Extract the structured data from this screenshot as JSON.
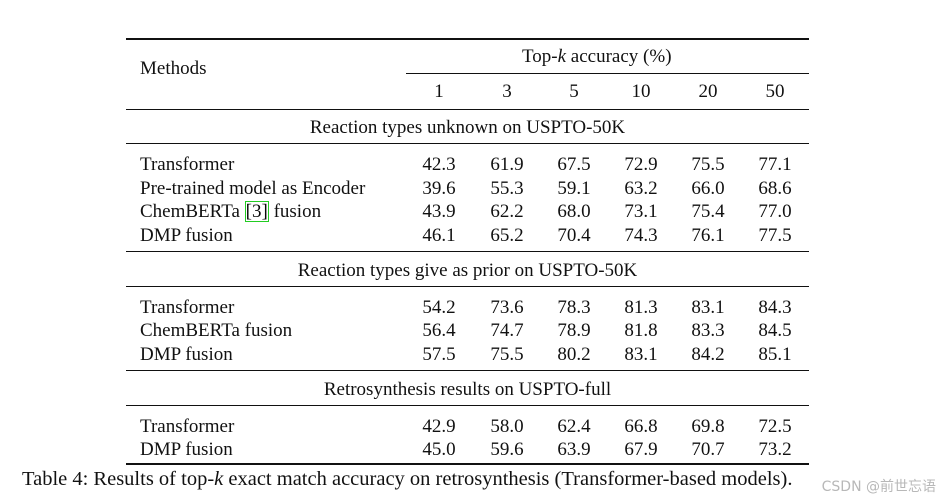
{
  "table": {
    "methods_header": "Methods",
    "topk_header_prefix": "Top-",
    "topk_header_k": "k",
    "topk_header_suffix": " accuracy (%)",
    "k_values": [
      "1",
      "3",
      "5",
      "10",
      "20",
      "50"
    ],
    "sections": [
      {
        "title": "Reaction types unknown on USPTO-50K",
        "rows": [
          {
            "method": "Transformer",
            "values": [
              "42.3",
              "61.9",
              "67.5",
              "72.9",
              "75.5",
              "77.1"
            ]
          },
          {
            "method": "Pre-trained model as Encoder",
            "values": [
              "39.6",
              "55.3",
              "59.1",
              "63.2",
              "66.0",
              "68.6"
            ]
          },
          {
            "method_prefix": "ChemBERTa ",
            "method_ref": "[3]",
            "method_suffix": " fusion",
            "values": [
              "43.9",
              "62.2",
              "68.0",
              "73.1",
              "75.4",
              "77.0"
            ]
          },
          {
            "method": "DMP fusion",
            "values": [
              "46.1",
              "65.2",
              "70.4",
              "74.3",
              "76.1",
              "77.5"
            ]
          }
        ]
      },
      {
        "title": "Reaction types give as prior on USPTO-50K",
        "rows": [
          {
            "method": "Transformer",
            "values": [
              "54.2",
              "73.6",
              "78.3",
              "81.3",
              "83.1",
              "84.3"
            ]
          },
          {
            "method": "ChemBERTa fusion",
            "values": [
              "56.4",
              "74.7",
              "78.9",
              "81.8",
              "83.3",
              "84.5"
            ]
          },
          {
            "method": "DMP fusion",
            "values": [
              "57.5",
              "75.5",
              "80.2",
              "83.1",
              "84.2",
              "85.1"
            ]
          }
        ]
      },
      {
        "title": "Retrosynthesis results on USPTO-full",
        "rows": [
          {
            "method": "Transformer",
            "values": [
              "42.9",
              "58.0",
              "62.4",
              "66.8",
              "69.8",
              "72.5"
            ]
          },
          {
            "method": "DMP fusion",
            "values": [
              "45.0",
              "59.6",
              "63.9",
              "67.9",
              "70.7",
              "73.2"
            ]
          }
        ]
      }
    ]
  },
  "caption": {
    "prefix": "Table 4: Results of top-",
    "k": "k",
    "suffix": " exact match accuracy on retrosynthesis (Transformer-based models)."
  },
  "watermark": "CSDN @前世忘语"
}
